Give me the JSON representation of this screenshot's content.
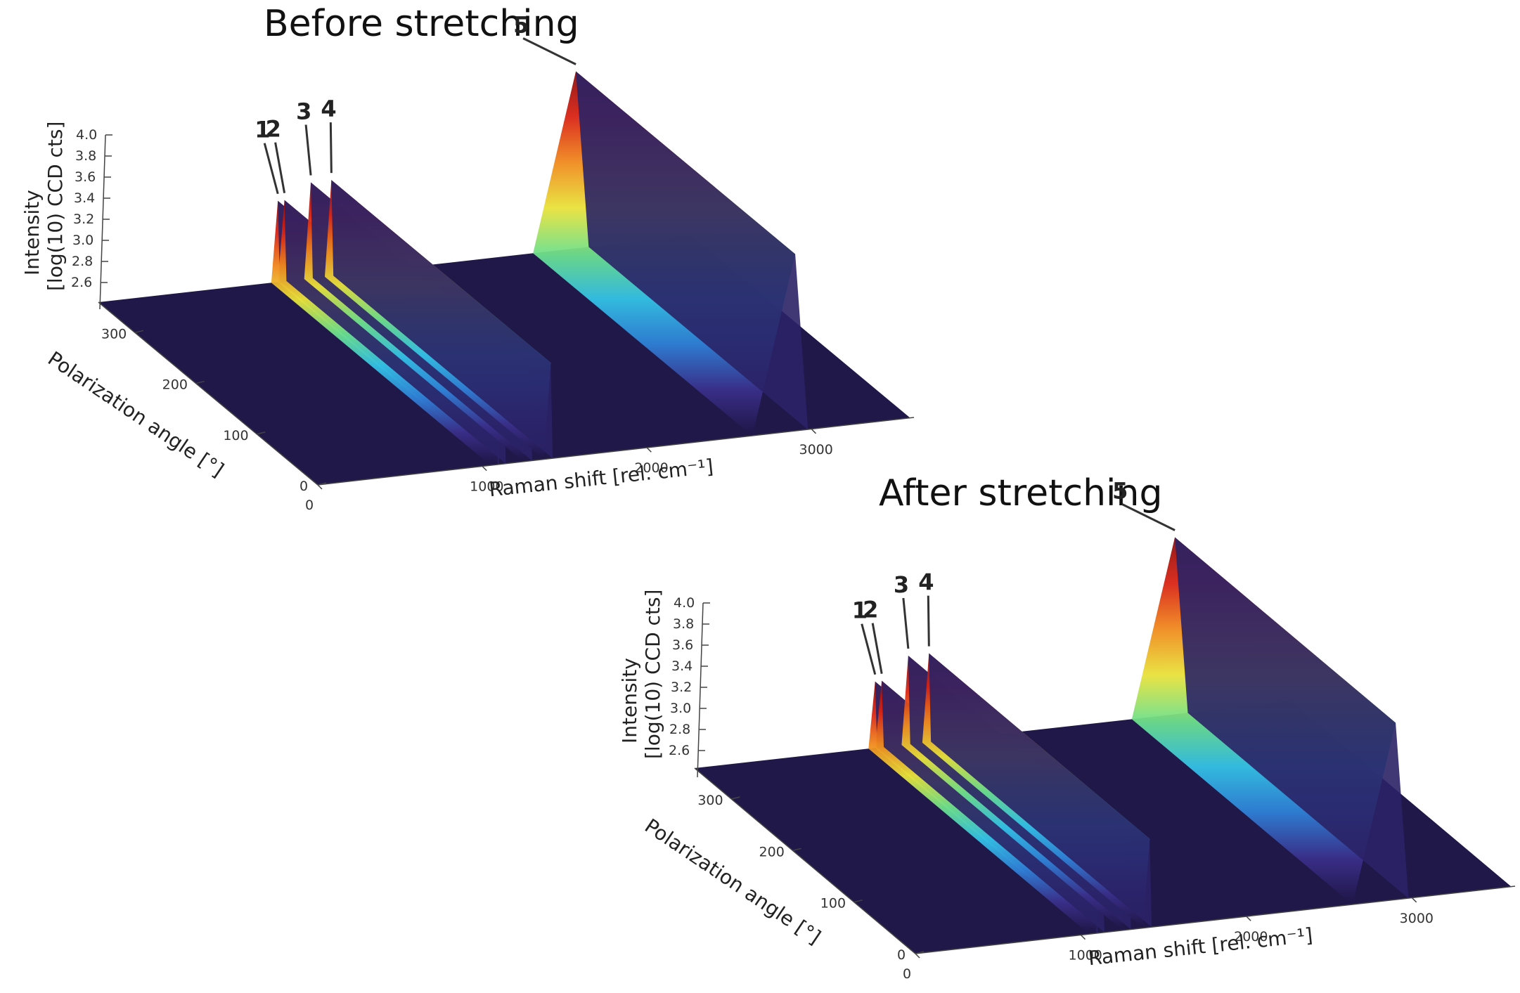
{
  "chart_data": [
    {
      "type": "surface3d",
      "title": "Before stretching",
      "xlabel": "Raman shift [rel. cm⁻¹]",
      "ylabel": "Polarization angle [°]",
      "zlabel_line1": "Intensity",
      "zlabel_line2": "[log(10) CCD cts]",
      "x_ticks": [
        "0",
        "1000",
        "2000",
        "3000"
      ],
      "y_ticks": [
        "0",
        "100",
        "200",
        "300"
      ],
      "z_ticks": [
        "4.0",
        "3.8",
        "3.6",
        "3.4",
        "3.2",
        "3.0",
        "2.8",
        "2.6"
      ],
      "xlim": [
        0,
        3600
      ],
      "ylim": [
        0,
        360
      ],
      "zlim": [
        2.5,
        4.0
      ],
      "colormap": [
        "#1e1545",
        "#3a2f8a",
        "#2f7fd6",
        "#33c2e6",
        "#6ee08a",
        "#e8e23a",
        "#f08a1e",
        "#d92415",
        "#8c0d0d"
      ],
      "annotations": [
        "1",
        "2",
        "3",
        "4",
        "5"
      ],
      "peaks": [
        {
          "label": "1",
          "x": 1090,
          "z": 3.35
        },
        {
          "label": "2",
          "x": 1130,
          "z": 3.35
        },
        {
          "label": "3",
          "x": 1290,
          "z": 3.45
        },
        {
          "label": "4",
          "x": 1415,
          "z": 3.45
        },
        {
          "label": "5",
          "x": 2900,
          "z": 4.0
        }
      ]
    },
    {
      "type": "surface3d",
      "title": "After stretching",
      "xlabel": "Raman shift [rel. cm⁻¹]",
      "ylabel": "Polarization angle [°]",
      "zlabel_line1": "Intensity",
      "zlabel_line2": "[log(10) CCD cts]",
      "x_ticks": [
        "0",
        "1000",
        "2000",
        "3000"
      ],
      "y_ticks": [
        "0",
        "100",
        "200",
        "300"
      ],
      "z_ticks": [
        "4.0",
        "3.8",
        "3.6",
        "3.4",
        "3.2",
        "3.0",
        "2.8",
        "2.6"
      ],
      "xlim": [
        0,
        3600
      ],
      "ylim": [
        0,
        360
      ],
      "zlim": [
        2.5,
        4.0
      ],
      "colormap": [
        "#1e1545",
        "#3a2f8a",
        "#2f7fd6",
        "#33c2e6",
        "#6ee08a",
        "#e8e23a",
        "#f08a1e",
        "#d92415",
        "#8c0d0d"
      ],
      "annotations": [
        "1",
        "2",
        "3",
        "4",
        "5"
      ],
      "peaks": [
        {
          "label": "1",
          "x": 1090,
          "z": 3.25
        },
        {
          "label": "2",
          "x": 1130,
          "z": 3.25
        },
        {
          "label": "3",
          "x": 1290,
          "z": 3.4
        },
        {
          "label": "4",
          "x": 1415,
          "z": 3.4
        },
        {
          "label": "5",
          "x": 2900,
          "z": 4.0
        }
      ]
    }
  ]
}
